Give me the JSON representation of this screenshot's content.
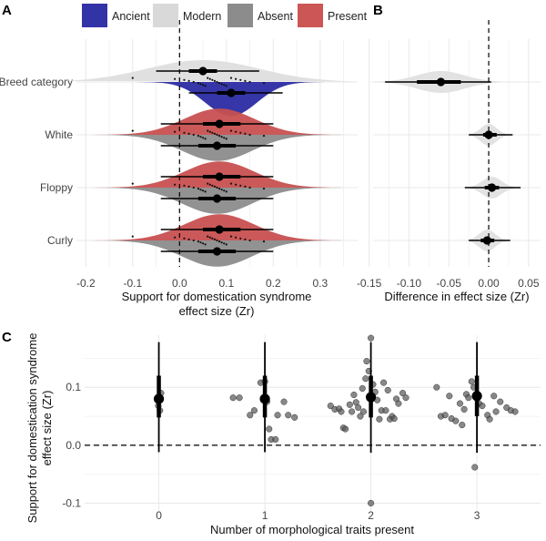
{
  "panel_labels": [
    "A",
    "B",
    "C"
  ],
  "legend": {
    "items": [
      {
        "label": "Ancient",
        "color": "#3333a8"
      },
      {
        "label": "Modern",
        "color": "#d9d9d9"
      },
      {
        "label": "Absent",
        "color": "#8c8c8c"
      },
      {
        "label": "Present",
        "color": "#cc5555"
      }
    ]
  },
  "colors": {
    "ancient": "#2b2ba3",
    "modern": "#dedede",
    "absent": "#8c8c8c",
    "present": "#c85050",
    "grid": "#e8e8e8",
    "point": "#000000"
  },
  "chart_data": [
    {
      "panel": "A",
      "type": "halfeye",
      "xlabel_line1": "Support for domestication syndrome",
      "xlabel_line2": "effect size (Zr)",
      "xlim": [
        -0.22,
        0.38
      ],
      "xticks": [
        "-0.2",
        "-0.1",
        "0.0",
        "0.1",
        "0.2",
        "0.3"
      ],
      "xtick_values": [
        -0.2,
        -0.1,
        0.0,
        0.1,
        0.2,
        0.3
      ],
      "reference_line": 0,
      "rows": [
        {
          "label": "Breed category",
          "groups": [
            {
              "name": "Modern",
              "side": "up",
              "mean": 0.05,
              "ci66": [
                0.02,
                0.08
              ],
              "ci95": [
                -0.05,
                0.17
              ],
              "width": 0.12,
              "height": 0.5
            },
            {
              "name": "Ancient",
              "side": "down",
              "mean": 0.11,
              "ci66": [
                0.08,
                0.14
              ],
              "ci95": [
                0.02,
                0.22
              ],
              "width": 0.055,
              "height": 0.78
            }
          ]
        },
        {
          "label": "White",
          "groups": [
            {
              "name": "Present",
              "side": "up",
              "mean": 0.085,
              "ci66": [
                0.05,
                0.13
              ],
              "ci95": [
                -0.04,
                0.2
              ],
              "width": 0.075,
              "height": 0.6
            },
            {
              "name": "Absent",
              "side": "down",
              "mean": 0.08,
              "ci66": [
                0.04,
                0.12
              ],
              "ci95": [
                -0.04,
                0.2
              ],
              "width": 0.075,
              "height": 0.6
            }
          ]
        },
        {
          "label": "Floppy",
          "groups": [
            {
              "name": "Present",
              "side": "up",
              "mean": 0.085,
              "ci66": [
                0.05,
                0.13
              ],
              "ci95": [
                -0.04,
                0.2
              ],
              "width": 0.075,
              "height": 0.6
            },
            {
              "name": "Absent",
              "side": "down",
              "mean": 0.08,
              "ci66": [
                0.04,
                0.12
              ],
              "ci95": [
                -0.04,
                0.2
              ],
              "width": 0.075,
              "height": 0.6
            }
          ]
        },
        {
          "label": "Curly",
          "groups": [
            {
              "name": "Present",
              "side": "up",
              "mean": 0.085,
              "ci66": [
                0.05,
                0.13
              ],
              "ci95": [
                -0.04,
                0.2
              ],
              "width": 0.075,
              "height": 0.6
            },
            {
              "name": "Absent",
              "side": "down",
              "mean": 0.08,
              "ci66": [
                0.04,
                0.12
              ],
              "ci95": [
                -0.04,
                0.2
              ],
              "width": 0.075,
              "height": 0.6
            }
          ]
        }
      ],
      "raw_points": [
        -0.1,
        -0.01,
        0.01,
        0.02,
        0.03,
        0.04,
        0.045,
        0.05,
        0.055,
        0.06,
        0.065,
        0.07,
        0.075,
        0.08,
        0.085,
        0.09,
        0.095,
        0.1,
        0.11,
        0.12,
        0.13,
        0.14,
        0.15,
        0.18
      ]
    },
    {
      "panel": "B",
      "type": "halfeye",
      "xlabel": "Difference in effect size (Zr)",
      "xlim": [
        -0.145,
        0.065
      ],
      "xticks": [
        "-0.15",
        "-0.10",
        "-0.05",
        "0.00",
        "0.05"
      ],
      "xtick_values": [
        -0.15,
        -0.1,
        -0.05,
        0.0,
        0.05
      ],
      "reference_line": 0,
      "rows": [
        {
          "label": "Breed category",
          "mean": -0.06,
          "ci66": [
            -0.09,
            -0.035
          ],
          "ci95": [
            -0.13,
            0.003
          ],
          "width": 0.03
        },
        {
          "label": "White",
          "mean": 0.0,
          "ci66": [
            -0.007,
            0.01
          ],
          "ci95": [
            -0.025,
            0.03
          ],
          "width": 0.01
        },
        {
          "label": "Floppy",
          "mean": 0.004,
          "ci66": [
            -0.005,
            0.013
          ],
          "ci95": [
            -0.03,
            0.04
          ],
          "width": 0.012
        },
        {
          "label": "Curly",
          "mean": -0.002,
          "ci66": [
            -0.01,
            0.007
          ],
          "ci95": [
            -0.025,
            0.027
          ],
          "width": 0.01
        }
      ]
    },
    {
      "panel": "C",
      "type": "scatter",
      "xlabel": "Number of morphological traits present",
      "ylabel_line1": "Support for domestication syndrome",
      "ylabel_line2": "effect size (Zr)",
      "xticks": [
        "0",
        "1",
        "2",
        "3"
      ],
      "xtick_values": [
        0,
        1,
        2,
        3
      ],
      "yticks": [
        "0.1",
        "0.0",
        "-0.1"
      ],
      "ytick_values": [
        0.1,
        0.0,
        -0.1
      ],
      "ylim": [
        -0.115,
        0.19
      ],
      "xlim": [
        -0.7,
        3.6
      ],
      "reference_line": 0,
      "summaries": [
        {
          "x": 0,
          "mean": 0.08,
          "ci66": [
            0.048,
            0.12
          ],
          "ci95": [
            -0.012,
            0.178
          ]
        },
        {
          "x": 1,
          "mean": 0.08,
          "ci66": [
            0.048,
            0.12
          ],
          "ci95": [
            -0.012,
            0.178
          ]
        },
        {
          "x": 2,
          "mean": 0.083,
          "ci66": [
            0.048,
            0.12
          ],
          "ci95": [
            -0.013,
            0.178
          ]
        },
        {
          "x": 3,
          "mean": 0.085,
          "ci66": [
            0.05,
            0.12
          ],
          "ci95": [
            -0.013,
            0.178
          ]
        }
      ],
      "points": [
        [
          -0.005,
          0.068
        ],
        [
          0.01,
          0.06
        ],
        [
          0.02,
          0.09
        ],
        [
          0.7,
          0.082
        ],
        [
          0.76,
          0.082
        ],
        [
          0.86,
          0.052
        ],
        [
          0.9,
          0.06
        ],
        [
          0.96,
          0.108
        ],
        [
          1.0,
          0.11
        ],
        [
          1.02,
          0.075
        ],
        [
          1.04,
          0.028
        ],
        [
          1.06,
          0.01
        ],
        [
          1.1,
          0.01
        ],
        [
          1.12,
          0.052
        ],
        [
          1.18,
          0.075
        ],
        [
          1.22,
          0.052
        ],
        [
          1.28,
          0.048
        ],
        [
          1.62,
          0.068
        ],
        [
          1.66,
          0.062
        ],
        [
          1.7,
          0.063
        ],
        [
          1.72,
          0.058
        ],
        [
          1.74,
          0.03
        ],
        [
          1.76,
          0.028
        ],
        [
          1.8,
          0.07
        ],
        [
          1.82,
          0.058
        ],
        [
          1.84,
          0.087
        ],
        [
          1.86,
          0.074
        ],
        [
          1.88,
          0.065
        ],
        [
          1.9,
          0.05
        ],
        [
          1.92,
          0.098
        ],
        [
          1.93,
          0.058
        ],
        [
          1.95,
          0.115
        ],
        [
          1.96,
          0.145
        ],
        [
          1.98,
          0.128
        ],
        [
          2.0,
          0.185
        ],
        [
          2.0,
          -0.1
        ],
        [
          2.02,
          0.105
        ],
        [
          2.04,
          0.092
        ],
        [
          2.06,
          0.078
        ],
        [
          2.08,
          0.045
        ],
        [
          2.1,
          0.06
        ],
        [
          2.12,
          0.108
        ],
        [
          2.14,
          0.06
        ],
        [
          2.16,
          0.095
        ],
        [
          2.18,
          0.045
        ],
        [
          2.2,
          0.05
        ],
        [
          2.22,
          0.046
        ],
        [
          2.24,
          0.08
        ],
        [
          2.26,
          0.072
        ],
        [
          2.3,
          0.09
        ],
        [
          2.33,
          0.082
        ],
        [
          2.62,
          0.1
        ],
        [
          2.66,
          0.05
        ],
        [
          2.7,
          0.052
        ],
        [
          2.74,
          0.085
        ],
        [
          2.76,
          0.046
        ],
        [
          2.8,
          0.042
        ],
        [
          2.84,
          0.072
        ],
        [
          2.86,
          0.035
        ],
        [
          2.88,
          0.062
        ],
        [
          2.9,
          0.088
        ],
        [
          2.92,
          0.082
        ],
        [
          2.95,
          0.11
        ],
        [
          2.97,
          0.1
        ],
        [
          2.98,
          -0.038
        ],
        [
          3.02,
          0.072
        ],
        [
          3.05,
          0.068
        ],
        [
          3.1,
          0.052
        ],
        [
          3.12,
          0.045
        ],
        [
          3.16,
          0.085
        ],
        [
          3.18,
          0.058
        ],
        [
          3.22,
          0.075
        ],
        [
          3.28,
          0.065
        ],
        [
          3.32,
          0.06
        ],
        [
          3.36,
          0.058
        ]
      ]
    }
  ]
}
